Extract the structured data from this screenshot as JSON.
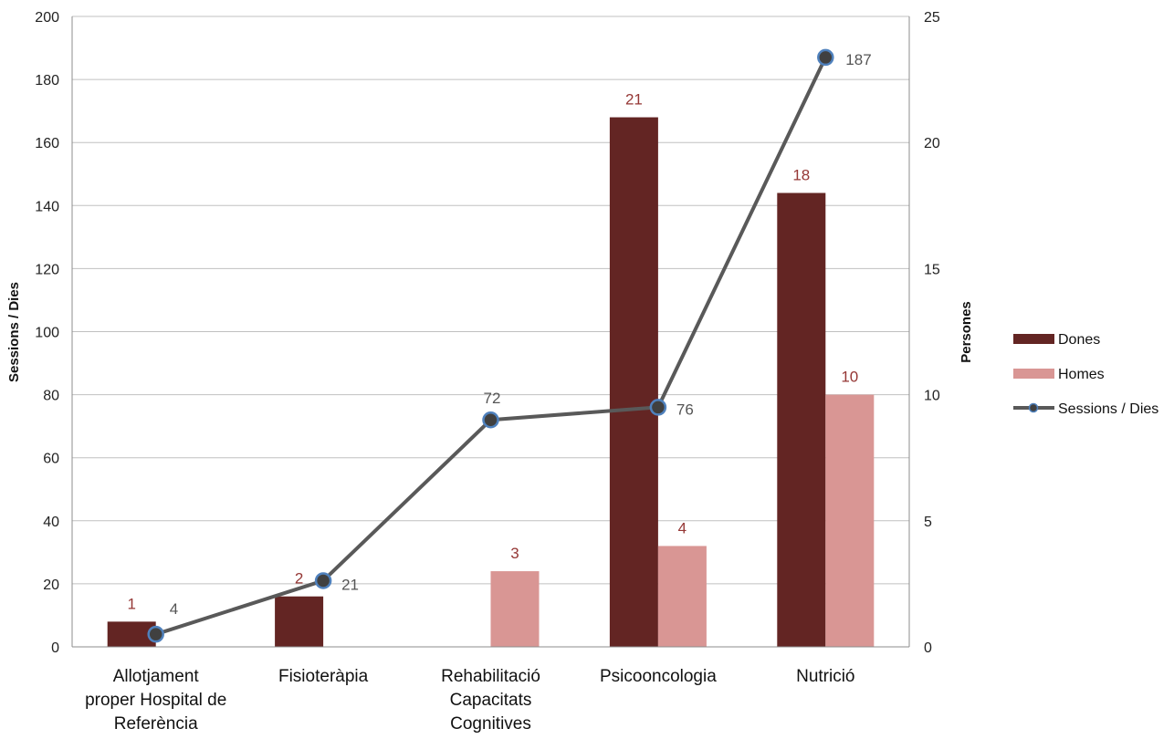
{
  "chart_data": {
    "type": "bar",
    "categories": [
      [
        "Allotjament",
        "proper Hospital de",
        "Referència"
      ],
      [
        "Fisioteràpia"
      ],
      [
        "Rehabilitació",
        "Capacitats",
        "Cognitives"
      ],
      [
        "Psicooncologia"
      ],
      [
        "Nutrició"
      ]
    ],
    "series": [
      {
        "name": "Dones",
        "type": "bar",
        "axis": "right",
        "values": [
          1,
          2,
          0,
          21,
          18
        ],
        "labels": [
          "1",
          "2",
          "",
          "21",
          "18"
        ],
        "color": "#632523"
      },
      {
        "name": "Homes",
        "type": "bar",
        "axis": "right",
        "values": [
          0,
          0,
          3,
          4,
          10
        ],
        "labels": [
          "",
          "",
          "3",
          "4",
          "10"
        ],
        "color": "#d99694"
      },
      {
        "name": "Sessions / Dies",
        "type": "line",
        "axis": "left",
        "values": [
          4,
          21,
          72,
          76,
          187
        ],
        "labels": [
          "4",
          "21",
          "72",
          "76",
          "187"
        ],
        "color": "#595959",
        "marker_color": "#4f81bd"
      }
    ],
    "y_left": {
      "label": "Sessions / Dies",
      "lim": [
        0,
        200
      ],
      "ticks": [
        "0",
        "20",
        "40",
        "60",
        "80",
        "100",
        "120",
        "140",
        "160",
        "180",
        "200"
      ]
    },
    "y_right": {
      "label": "Persones",
      "lim": [
        0,
        25
      ],
      "ticks": [
        "0",
        "5",
        "10",
        "15",
        "20",
        "25"
      ]
    },
    "bar_label_color": "#953735",
    "line_label_color": "#595959",
    "grid": true,
    "legend_position": "right"
  }
}
